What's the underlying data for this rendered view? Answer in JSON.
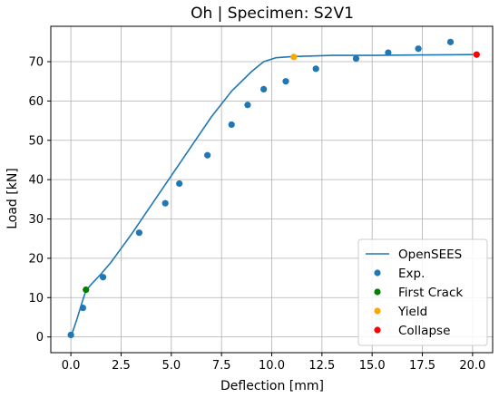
{
  "chart_data": {
    "type": "line",
    "title": "Oh | Specimen: S2V1",
    "xlabel": "Deflection [mm]",
    "ylabel": "Load [kN]",
    "xlim": [
      -1.0,
      21.0
    ],
    "ylim": [
      -4.0,
      79.0
    ],
    "x_ticks": [
      0.0,
      2.5,
      5.0,
      7.5,
      10.0,
      12.5,
      15.0,
      17.5,
      20.0
    ],
    "x_tick_labels": [
      "0.0",
      "2.5",
      "5.0",
      "7.5",
      "10.0",
      "12.5",
      "15.0",
      "17.5",
      "20.0"
    ],
    "y_ticks": [
      0,
      10,
      20,
      30,
      40,
      50,
      60,
      70
    ],
    "y_tick_labels": [
      "0",
      "10",
      "20",
      "30",
      "40",
      "50",
      "60",
      "70"
    ],
    "grid": true,
    "legend_position": "bottom-right",
    "series": [
      {
        "name": "OpenSEES",
        "kind": "line",
        "color": "#1f77b4",
        "points": [
          [
            0.0,
            0.0
          ],
          [
            0.3,
            4.5
          ],
          [
            0.6,
            9.5
          ],
          [
            0.75,
            11.8
          ],
          [
            1.0,
            13.3
          ],
          [
            1.5,
            16.0
          ],
          [
            2.0,
            19.0
          ],
          [
            3.0,
            26.0
          ],
          [
            4.0,
            33.5
          ],
          [
            5.0,
            41.0
          ],
          [
            6.0,
            48.5
          ],
          [
            7.0,
            56.0
          ],
          [
            8.0,
            62.5
          ],
          [
            9.0,
            67.5
          ],
          [
            9.6,
            70.0
          ],
          [
            10.2,
            71.0
          ],
          [
            11.0,
            71.3
          ],
          [
            13.0,
            71.6
          ],
          [
            15.0,
            71.6
          ],
          [
            17.0,
            71.7
          ],
          [
            20.0,
            71.8
          ]
        ]
      },
      {
        "name": "Exp.",
        "kind": "scatter",
        "color": "#1f77b4",
        "points": [
          [
            0.0,
            0.5
          ],
          [
            0.6,
            7.4
          ],
          [
            1.6,
            15.2
          ],
          [
            3.4,
            26.5
          ],
          [
            4.7,
            34.0
          ],
          [
            5.4,
            39.0
          ],
          [
            6.8,
            46.2
          ],
          [
            8.0,
            54.0
          ],
          [
            8.8,
            59.0
          ],
          [
            9.6,
            63.0
          ],
          [
            10.7,
            65.0
          ],
          [
            12.2,
            68.2
          ],
          [
            14.2,
            70.8
          ],
          [
            15.8,
            72.3
          ],
          [
            17.3,
            73.3
          ],
          [
            18.9,
            75.0
          ]
        ]
      },
      {
        "name": "First Crack",
        "kind": "scatter",
        "color": "#008000",
        "points": [
          [
            0.75,
            12.0
          ]
        ]
      },
      {
        "name": "Yield",
        "kind": "scatter",
        "color": "#ffa500",
        "points": [
          [
            11.1,
            71.2
          ]
        ]
      },
      {
        "name": "Collapse",
        "kind": "scatter",
        "color": "#ff0000",
        "points": [
          [
            20.2,
            71.8
          ]
        ]
      }
    ]
  }
}
